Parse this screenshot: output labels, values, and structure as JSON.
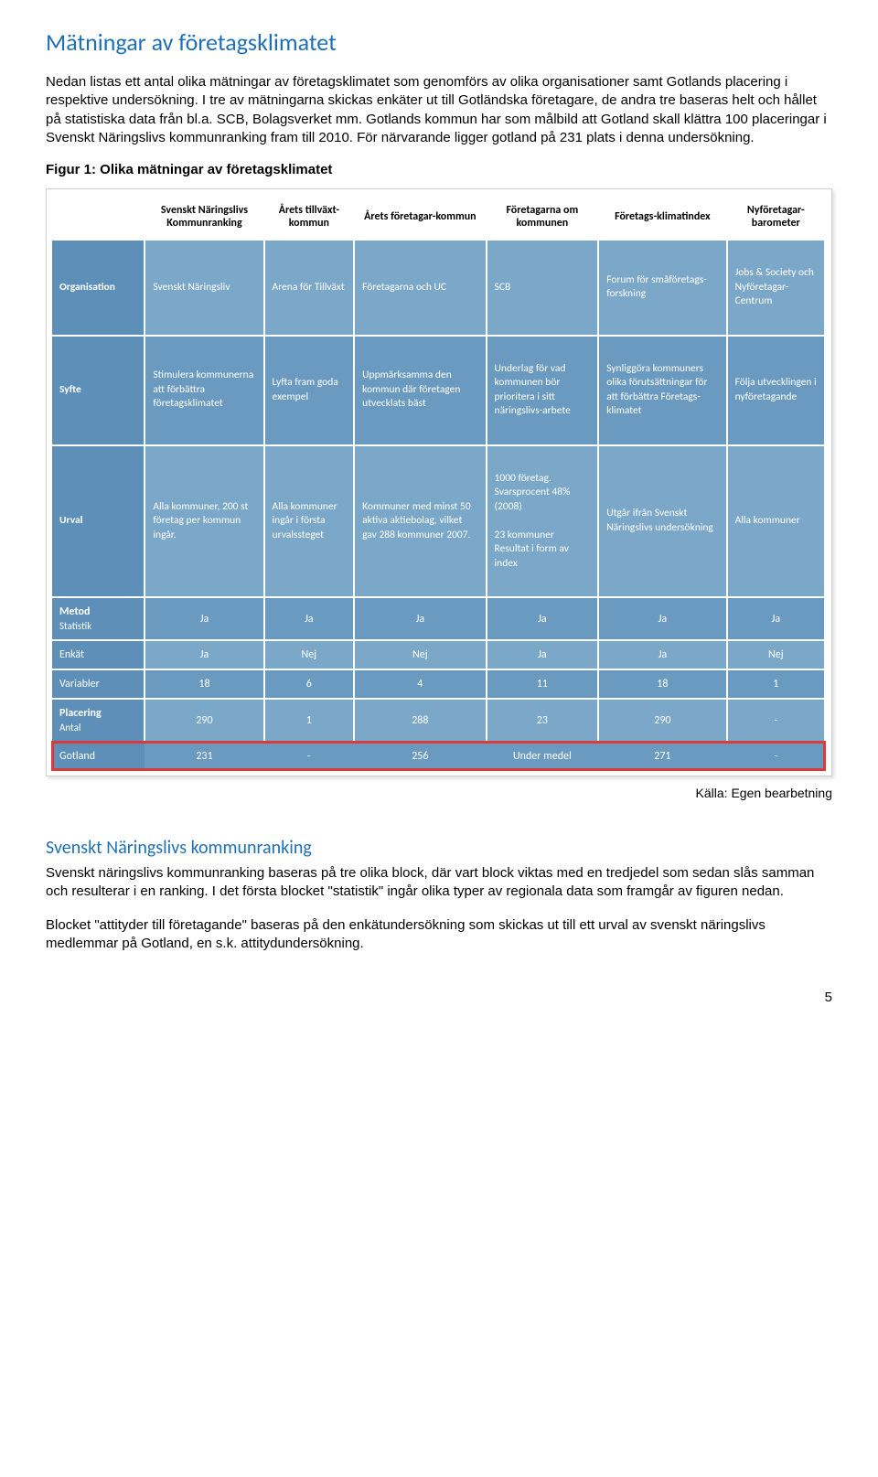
{
  "heading": "Mätningar av företagsklimatet",
  "intro": "Nedan listas ett antal olika mätningar av företagsklimatet som genomförs av olika organisationer samt Gotlands placering i respektive undersökning. I tre av mätningarna skickas enkäter ut till Gotländska företagare, de andra tre baseras helt och hållet på statistiska data från bl.a. SCB, Bolagsverket mm. Gotlands kommun har som målbild att Gotland skall klättra 100 placeringar i Svenskt Näringslivs kommunranking fram till 2010. För närvarande ligger gotland på 231 plats i denna undersökning.",
  "figure_caption": "Figur 1: Olika mätningar av företagsklimatet",
  "table": {
    "colors": {
      "stripe_a": "#7ba7c9",
      "stripe_b": "#6a9ac0",
      "row_header": "#5d8fb8",
      "highlight_border": "#d93b3b"
    },
    "columns": [
      "",
      "Svenskt Näringslivs Kommunranking",
      "Årets tillväxt-kommun",
      "Årets företagar-kommun",
      "Företagarna om kommunen",
      "Företags-klimatindex",
      "Nyföretagar-barometer"
    ],
    "rows": [
      {
        "label": "Organisation",
        "cells": [
          "Svenskt Näringsliv",
          "Arena för Tillväxt",
          "Företagarna och UC",
          "SCB",
          "Forum för småföretags-forskning",
          "Jobs & Society och Nyföretagar-Centrum"
        ],
        "tall": true,
        "stripe": "a"
      },
      {
        "label": "Syfte",
        "cells": [
          "Stimulera kommunerna att förbättra företagsklimatet",
          "Lyfta fram goda exempel",
          "Uppmärksamma den kommun där företagen utvecklats bäst",
          "Underlag för vad kommunen bör prioritera i sitt näringslivs-arbete",
          "Synliggöra kommuners olika förutsättningar för att förbättra Företags-klimatet",
          "Följa utvecklingen i nyföretagande"
        ],
        "tall": true,
        "stripe": "b"
      },
      {
        "label": "Urval",
        "cells": [
          "Alla kommuner, 200 st företag per kommun ingår.",
          "Alla kommuner ingår i första urvalssteget",
          "Kommuner med minst 50 aktiva aktiebolag, vilket gav 288 kommuner 2007.",
          "1000 företag. Svarsprocent 48% (2008)\n\n23 kommuner Resultat i form av index",
          "Utgår ifrån Svenskt Näringslivs undersökning",
          "Alla kommuner"
        ],
        "tall": true,
        "stripe": "a"
      }
    ],
    "metric_rows": [
      {
        "sidebar": "Metod",
        "label": "Statistik",
        "cells": [
          "Ja",
          "Ja",
          "Ja",
          "Ja",
          "Ja",
          "Ja"
        ],
        "stripe": "b"
      },
      {
        "sidebar": "",
        "label": "Enkät",
        "cells": [
          "Ja",
          "Nej",
          "Nej",
          "Ja",
          "Ja",
          "Nej"
        ],
        "stripe": "a"
      },
      {
        "sidebar": "",
        "label": "Variabler",
        "cells": [
          "18",
          "6",
          "4",
          "11",
          "18",
          "1"
        ],
        "stripe": "b"
      },
      {
        "sidebar": "Placering",
        "label": "Antal",
        "cells": [
          "290",
          "1",
          "288",
          "23",
          "290",
          "-"
        ],
        "stripe": "a"
      },
      {
        "sidebar": "",
        "label": "Gotland",
        "cells": [
          "231",
          "-",
          "256",
          "Under medel",
          "271",
          "-"
        ],
        "stripe": "b",
        "highlight": true
      }
    ]
  },
  "source_line": "Källa: Egen bearbetning",
  "section2": {
    "title": "Svenskt Näringslivs kommunranking",
    "p1": "Svenskt näringslivs kommunranking baseras på tre olika block, där vart block viktas med en tredjedel som sedan slås samman och resulterar i en ranking. I det första blocket \"statistik\" ingår olika typer av regionala data som framgår av figuren nedan.",
    "p2": "Blocket \"attityder till företagande\" baseras på den enkätundersökning som skickas ut till ett urval av svenskt näringslivs medlemmar på Gotland, en s.k. attitydundersökning."
  },
  "page_number": "5"
}
